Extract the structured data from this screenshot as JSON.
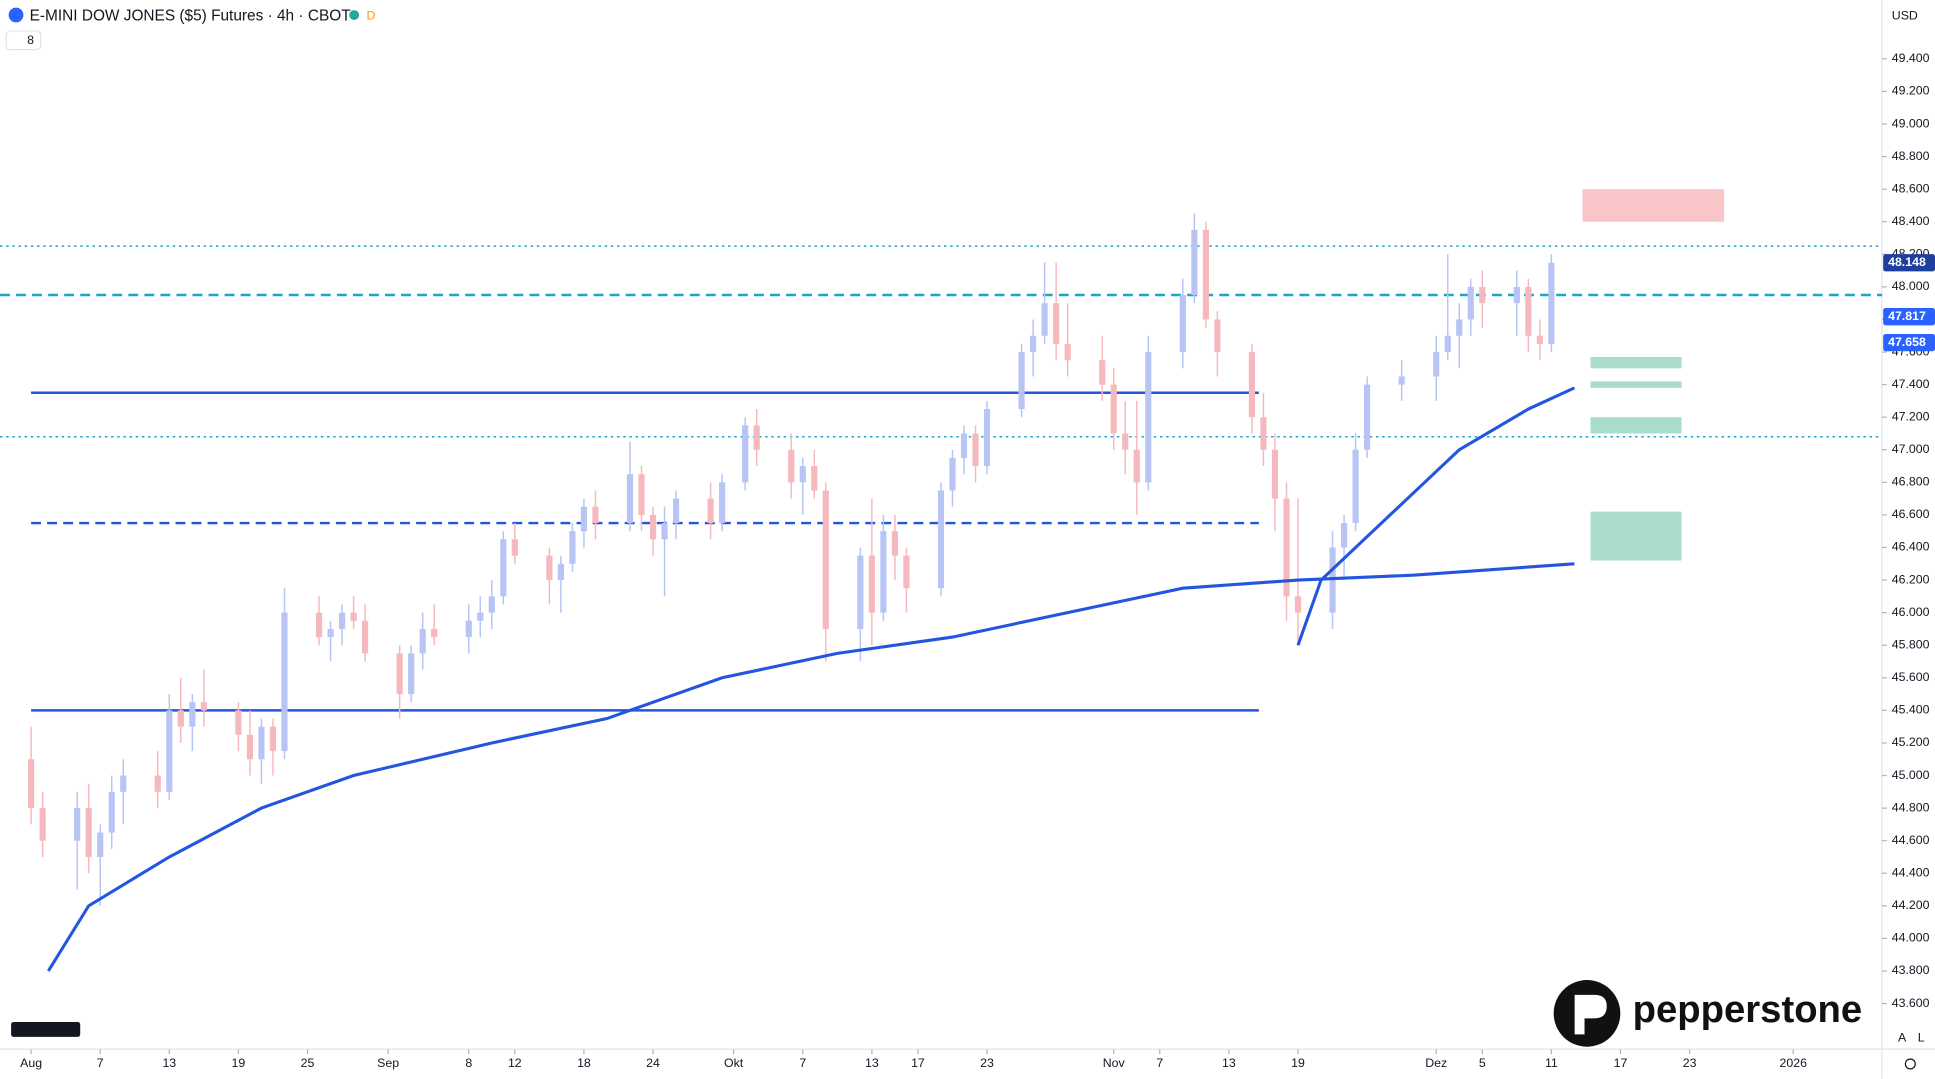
{
  "chart_data": {
    "type": "candlestick",
    "title": "E-MINI DOW JONES ($5) Futures · 4h · CBOT",
    "badge": "D",
    "indicator_count": "8",
    "currency": "USD",
    "watermark": "pepperstone",
    "scale_buttons": [
      "A",
      "L"
    ],
    "up_color": "#b7c4f4",
    "down_color": "#f5b9bd",
    "x": [
      0,
      1,
      4,
      5,
      6,
      7,
      8,
      11,
      12,
      13,
      14,
      15,
      18,
      19,
      20,
      21,
      22,
      25,
      26,
      27,
      28,
      29,
      32,
      33,
      34,
      35,
      38,
      39,
      40,
      41,
      42,
      45,
      46,
      47,
      48,
      49,
      52,
      53,
      54,
      55,
      56,
      59,
      60,
      62,
      63,
      66,
      67,
      68,
      69,
      72,
      73,
      74,
      75,
      76,
      79,
      80,
      81,
      82,
      83,
      86,
      87,
      88,
      89,
      90,
      93,
      94,
      95,
      96,
      97,
      100,
      101,
      102,
      103,
      106,
      107,
      108,
      109,
      110,
      113,
      114,
      115,
      116,
      119,
      122,
      123,
      124,
      125,
      126,
      129,
      130,
      131,
      132
    ],
    "open": [
      45100,
      44800,
      44600,
      44800,
      44500,
      44650,
      44900,
      45000,
      44900,
      45400,
      45300,
      45450,
      45400,
      45250,
      45100,
      45300,
      45150,
      46000,
      45850,
      45900,
      46000,
      45950,
      45750,
      45500,
      45750,
      45900,
      45850,
      45950,
      46000,
      46100,
      46450,
      46350,
      46200,
      46300,
      46500,
      46650,
      46550,
      46850,
      46600,
      46450,
      46550,
      46700,
      46550,
      46800,
      47150,
      47000,
      46800,
      46900,
      46750,
      45900,
      46350,
      46000,
      46500,
      46350,
      46150,
      46750,
      46950,
      47100,
      46900,
      47250,
      47600,
      47700,
      47900,
      47650,
      47550,
      47400,
      47100,
      47000,
      46800,
      47600,
      47950,
      48350,
      47800,
      47600,
      47200,
      47000,
      46700,
      46100,
      46000,
      46400,
      46550,
      47000,
      47400,
      47450,
      47600,
      47700,
      47800,
      48000,
      47900,
      48000,
      47700,
      47650
    ],
    "high": [
      45300,
      44900,
      44900,
      44950,
      44700,
      45000,
      45100,
      45150,
      45500,
      45600,
      45500,
      45650,
      45450,
      45400,
      45350,
      45350,
      46150,
      46100,
      45950,
      46050,
      46100,
      46050,
      45800,
      45800,
      46000,
      46050,
      46050,
      46100,
      46200,
      46500,
      46550,
      46400,
      46350,
      46550,
      46700,
      46750,
      47050,
      46900,
      46650,
      46650,
      46750,
      46800,
      46850,
      47200,
      47250,
      47100,
      46950,
      47000,
      46800,
      46400,
      46700,
      46600,
      46600,
      46400,
      46800,
      47000,
      47150,
      47150,
      47300,
      47650,
      47800,
      48150,
      48150,
      47900,
      47700,
      47500,
      47300,
      47300,
      47700,
      48050,
      48450,
      48400,
      47850,
      47650,
      47350,
      47100,
      46800,
      46700,
      46500,
      46600,
      47100,
      47450,
      47550,
      47700,
      48200,
      47900,
      48050,
      48100,
      48100,
      48050,
      47800,
      48200
    ],
    "low": [
      44700,
      44500,
      44300,
      44400,
      44200,
      44550,
      44700,
      44800,
      44850,
      45200,
      45150,
      45300,
      45150,
      45000,
      44950,
      45000,
      45100,
      45800,
      45700,
      45800,
      45900,
      45700,
      45350,
      45450,
      45650,
      45800,
      45750,
      45850,
      45900,
      46050,
      46300,
      46050,
      46000,
      46250,
      46400,
      46450,
      46500,
      46500,
      46350,
      46100,
      46450,
      46450,
      46500,
      46750,
      46900,
      46700,
      46600,
      46700,
      45700,
      45700,
      45800,
      45950,
      46200,
      46000,
      46100,
      46650,
      46850,
      46800,
      46850,
      47200,
      47450,
      47650,
      47550,
      47450,
      47300,
      47000,
      46850,
      46600,
      46750,
      47500,
      47900,
      47750,
      47450,
      47100,
      46900,
      46500,
      45950,
      45800,
      45900,
      46200,
      46500,
      46950,
      47300,
      47300,
      47550,
      47500,
      47700,
      47750,
      47700,
      47600,
      47550,
      47600
    ],
    "close": [
      44800,
      44600,
      44800,
      44500,
      44650,
      44900,
      45000,
      44900,
      45400,
      45300,
      45450,
      45400,
      45250,
      45100,
      45300,
      45150,
      46000,
      45850,
      45900,
      46000,
      45950,
      45750,
      45500,
      45750,
      45900,
      45850,
      45950,
      46000,
      46100,
      46450,
      46350,
      46200,
      46300,
      46500,
      46650,
      46550,
      46850,
      46600,
      46450,
      46550,
      46700,
      46550,
      46800,
      47150,
      47000,
      46800,
      46900,
      46750,
      45900,
      46350,
      46000,
      46500,
      46350,
      46150,
      46750,
      46950,
      47100,
      46900,
      47250,
      47600,
      47700,
      47900,
      47650,
      47550,
      47400,
      47100,
      47000,
      46800,
      47600,
      47950,
      48350,
      47800,
      47600,
      47200,
      47000,
      46700,
      46100,
      46000,
      46400,
      46550,
      47000,
      47400,
      47450,
      47600,
      47700,
      47800,
      48000,
      47900,
      48000,
      47700,
      47650,
      48148
    ],
    "lines": [
      {
        "color": "#2355e0",
        "x": [
          1.5,
          5,
          12,
          20,
          28,
          40,
          50,
          60,
          70,
          80,
          90,
          100,
          110,
          120,
          134
        ],
        "values": [
          43800,
          44200,
          44500,
          44800,
          45000,
          45200,
          45350,
          45600,
          45750,
          45850,
          46000,
          46150,
          46200,
          46230,
          46300
        ]
      },
      {
        "color": "#2355e0",
        "x": [
          110,
          112,
          118,
          124,
          130,
          134
        ],
        "values": [
          45800,
          46200,
          46600,
          47000,
          47250,
          47380
        ]
      }
    ],
    "levels": [
      {
        "value": 47350,
        "color": "#2355e0",
        "dash": "solid",
        "x": [
          0,
          106.6
        ]
      },
      {
        "value": 45400,
        "color": "#2355e0",
        "dash": "solid",
        "x": [
          0,
          106.6
        ]
      },
      {
        "value": 46550,
        "color": "#2355e0",
        "dash": "dashed",
        "x": [
          0,
          106.6
        ]
      },
      {
        "value": 48250,
        "color": "#1aa6c9",
        "dash": "dotted",
        "x": [
          -2.7,
          160.7
        ]
      },
      {
        "value": 47080,
        "color": "#1aa6c9",
        "dash": "dotted",
        "x": [
          -2.7,
          160.7
        ]
      },
      {
        "value": 47950,
        "color": "#1aa6c9",
        "dash": "dashed",
        "x": [
          -2.7,
          160.7
        ]
      }
    ],
    "zones": [
      {
        "color": "#f9c5c8",
        "x": [
          134.7,
          147
        ],
        "range": [
          48400,
          48600
        ]
      },
      {
        "color": "#a9dccd",
        "x": [
          135.4,
          143.3
        ],
        "range": [
          47500,
          47570
        ]
      },
      {
        "color": "#a9dccd",
        "x": [
          135.4,
          143.3
        ],
        "range": [
          47380,
          47420
        ]
      },
      {
        "color": "#a9dccd",
        "x": [
          135.4,
          143.3
        ],
        "range": [
          47100,
          47200
        ]
      },
      {
        "color": "#a9dccd",
        "x": [
          135.4,
          143.3
        ],
        "range": [
          46320,
          46620
        ]
      }
    ],
    "price_labels": [
      {
        "value": 48148,
        "label": "48.148",
        "color": "#1f3f9e"
      },
      {
        "value": 47817,
        "label": "47.817",
        "color": "#2962ff"
      },
      {
        "value": 47658,
        "label": "47.658",
        "color": "#2962ff"
      }
    ],
    "xlim": [
      -2.7,
      160.7
    ],
    "xticks": [
      {
        "value": 0,
        "label": "Aug"
      },
      {
        "value": 6,
        "label": "7"
      },
      {
        "value": 12,
        "label": "13"
      },
      {
        "value": 18,
        "label": "19"
      },
      {
        "value": 24,
        "label": "25"
      },
      {
        "value": 31,
        "label": "Sep"
      },
      {
        "value": 38,
        "label": "8"
      },
      {
        "value": 42,
        "label": "12"
      },
      {
        "value": 48,
        "label": "18"
      },
      {
        "value": 54,
        "label": "24"
      },
      {
        "value": 61,
        "label": "Okt"
      },
      {
        "value": 67,
        "label": "7"
      },
      {
        "value": 73,
        "label": "13"
      },
      {
        "value": 77,
        "label": "17"
      },
      {
        "value": 83,
        "label": "23"
      },
      {
        "value": 94,
        "label": "Nov"
      },
      {
        "value": 98,
        "label": "7"
      },
      {
        "value": 104,
        "label": "13"
      },
      {
        "value": 110,
        "label": "19"
      },
      {
        "value": 122,
        "label": "Dez"
      },
      {
        "value": 126,
        "label": "5"
      },
      {
        "value": 132,
        "label": "11"
      },
      {
        "value": 138,
        "label": "17"
      },
      {
        "value": 144,
        "label": "23"
      },
      {
        "value": 153,
        "label": "2026"
      }
    ],
    "ylim": [
      43320,
      49760
    ],
    "yticks": [
      {
        "value": 49400,
        "label": "49.400"
      },
      {
        "value": 49200,
        "label": "49.200"
      },
      {
        "value": 49000,
        "label": "49.000"
      },
      {
        "value": 48800,
        "label": "48.800"
      },
      {
        "value": 48600,
        "label": "48.600"
      },
      {
        "value": 48400,
        "label": "48.400"
      },
      {
        "value": 48200,
        "label": "48.200"
      },
      {
        "value": 48000,
        "label": "48.000"
      },
      {
        "value": 47800,
        "label": "47.800"
      },
      {
        "value": 47600,
        "label": "47.600"
      },
      {
        "value": 47400,
        "label": "47.400"
      },
      {
        "value": 47200,
        "label": "47.200"
      },
      {
        "value": 47000,
        "label": "47.000"
      },
      {
        "value": 46800,
        "label": "46.800"
      },
      {
        "value": 46600,
        "label": "46.600"
      },
      {
        "value": 46400,
        "label": "46.400"
      },
      {
        "value": 46200,
        "label": "46.200"
      },
      {
        "value": 46000,
        "label": "46.000"
      },
      {
        "value": 45800,
        "label": "45.800"
      },
      {
        "value": 45600,
        "label": "45.600"
      },
      {
        "value": 45400,
        "label": "45.400"
      },
      {
        "value": 45200,
        "label": "45.200"
      },
      {
        "value": 45000,
        "label": "45.000"
      },
      {
        "value": 44800,
        "label": "44.800"
      },
      {
        "value": 44600,
        "label": "44.600"
      },
      {
        "value": 44400,
        "label": "44.400"
      },
      {
        "value": 44200,
        "label": "44.200"
      },
      {
        "value": 44000,
        "label": "44.000"
      },
      {
        "value": 43800,
        "label": "43.800"
      },
      {
        "value": 43600,
        "label": "43.600"
      }
    ]
  }
}
